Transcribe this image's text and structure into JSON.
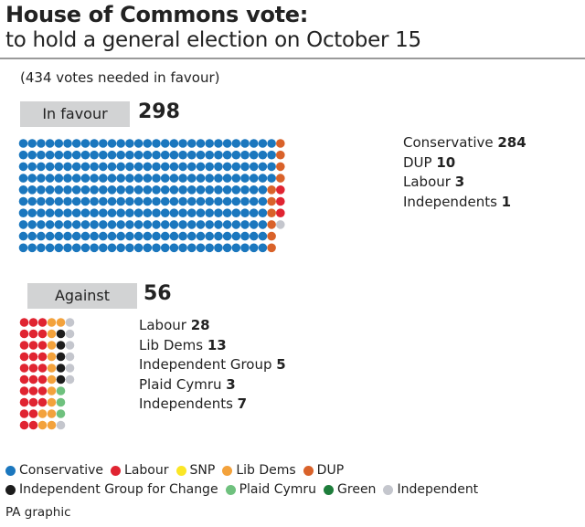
{
  "title": "House of Commons vote:",
  "subtitle": "to hold a general election on October 15",
  "note": "(434 votes needed in favour)",
  "colors": {
    "Conservative": "#1b77be",
    "Labour": "#e02431",
    "SNP": "#fbe626",
    "Lib Dems": "#f3a23c",
    "DUP": "#d9622a",
    "Independent Group for Change": "#1c1c1c",
    "Plaid Cymru": "#6fc17e",
    "Green": "#1e7d3b",
    "Independent": "#c4c6cd"
  },
  "chart_data": [
    {
      "type": "waffle",
      "group": "In favour",
      "total": 298,
      "rows": 10,
      "fill_order": "column-major",
      "series": [
        {
          "name": "Conservative",
          "value": 284
        },
        {
          "name": "DUP",
          "value": 10
        },
        {
          "name": "Labour",
          "value": 3
        },
        {
          "name": "Independents",
          "value": 1
        }
      ],
      "dot_parties": [
        "Conservative",
        "DUP",
        "Labour",
        "Independent"
      ]
    },
    {
      "type": "waffle",
      "group": "Against",
      "total": 56,
      "rows": 10,
      "fill_order": "column-major",
      "series": [
        {
          "name": "Labour",
          "value": 28
        },
        {
          "name": "Lib Dems",
          "value": 13
        },
        {
          "name": "Independent Group",
          "value": 5
        },
        {
          "name": "Plaid Cymru",
          "value": 3
        },
        {
          "name": "Independents",
          "value": 7
        }
      ],
      "dot_parties": [
        "Labour",
        "Lib Dems",
        "Independent Group for Change",
        "Plaid Cymru",
        "Independent"
      ]
    }
  ],
  "legend": [
    [
      "Conservative",
      "Labour",
      "SNP",
      "Lib Dems",
      "DUP"
    ],
    [
      "Independent Group for Change",
      "Plaid Cymru",
      "Green",
      "Independent"
    ]
  ],
  "credit": "PA graphic"
}
